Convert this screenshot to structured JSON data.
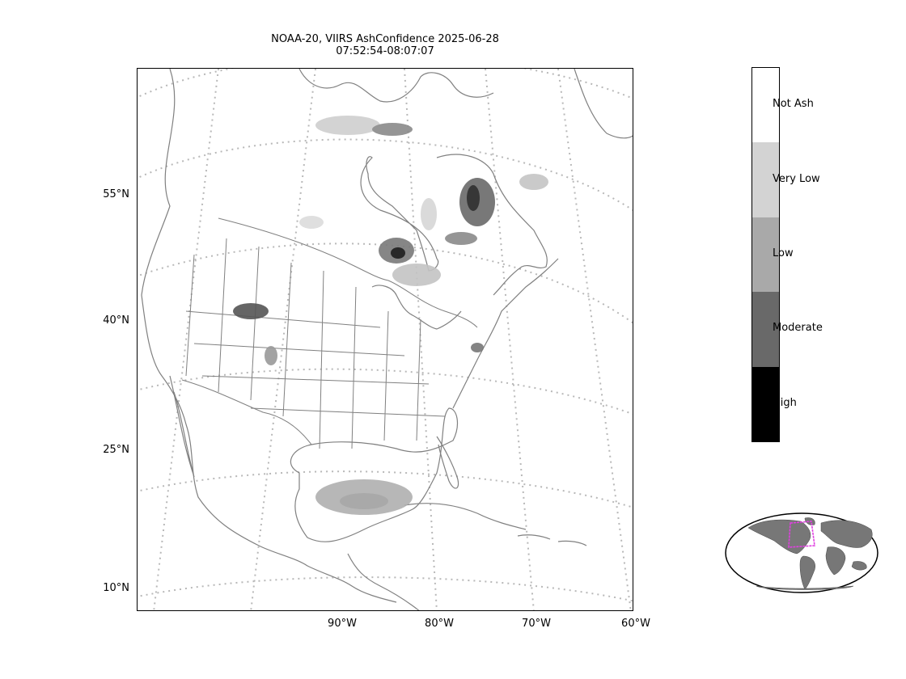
{
  "title": {
    "line1": "NOAA-20, VIIRS AshConfidence 2025-06-28",
    "line2": "07:52:54-08:07:07"
  },
  "lat_labels": [
    "55°N",
    "40°N",
    "25°N",
    "10°N"
  ],
  "lon_labels": [
    "90°W",
    "80°W",
    "70°W",
    "60°W"
  ],
  "legend": {
    "categories": [
      {
        "label": "Not Ash",
        "color": "#ffffff"
      },
      {
        "label": "Very Low",
        "color": "#d3d3d3"
      },
      {
        "label": "Low",
        "color": "#a9a9a9"
      },
      {
        "label": "Moderate",
        "color": "#696969"
      },
      {
        "label": "High",
        "color": "#000000"
      }
    ]
  },
  "colors": {
    "coastline": "#808080",
    "gridline": "#b0b0b0",
    "domain_box": "#e040e0",
    "land_inset": "#777777"
  }
}
